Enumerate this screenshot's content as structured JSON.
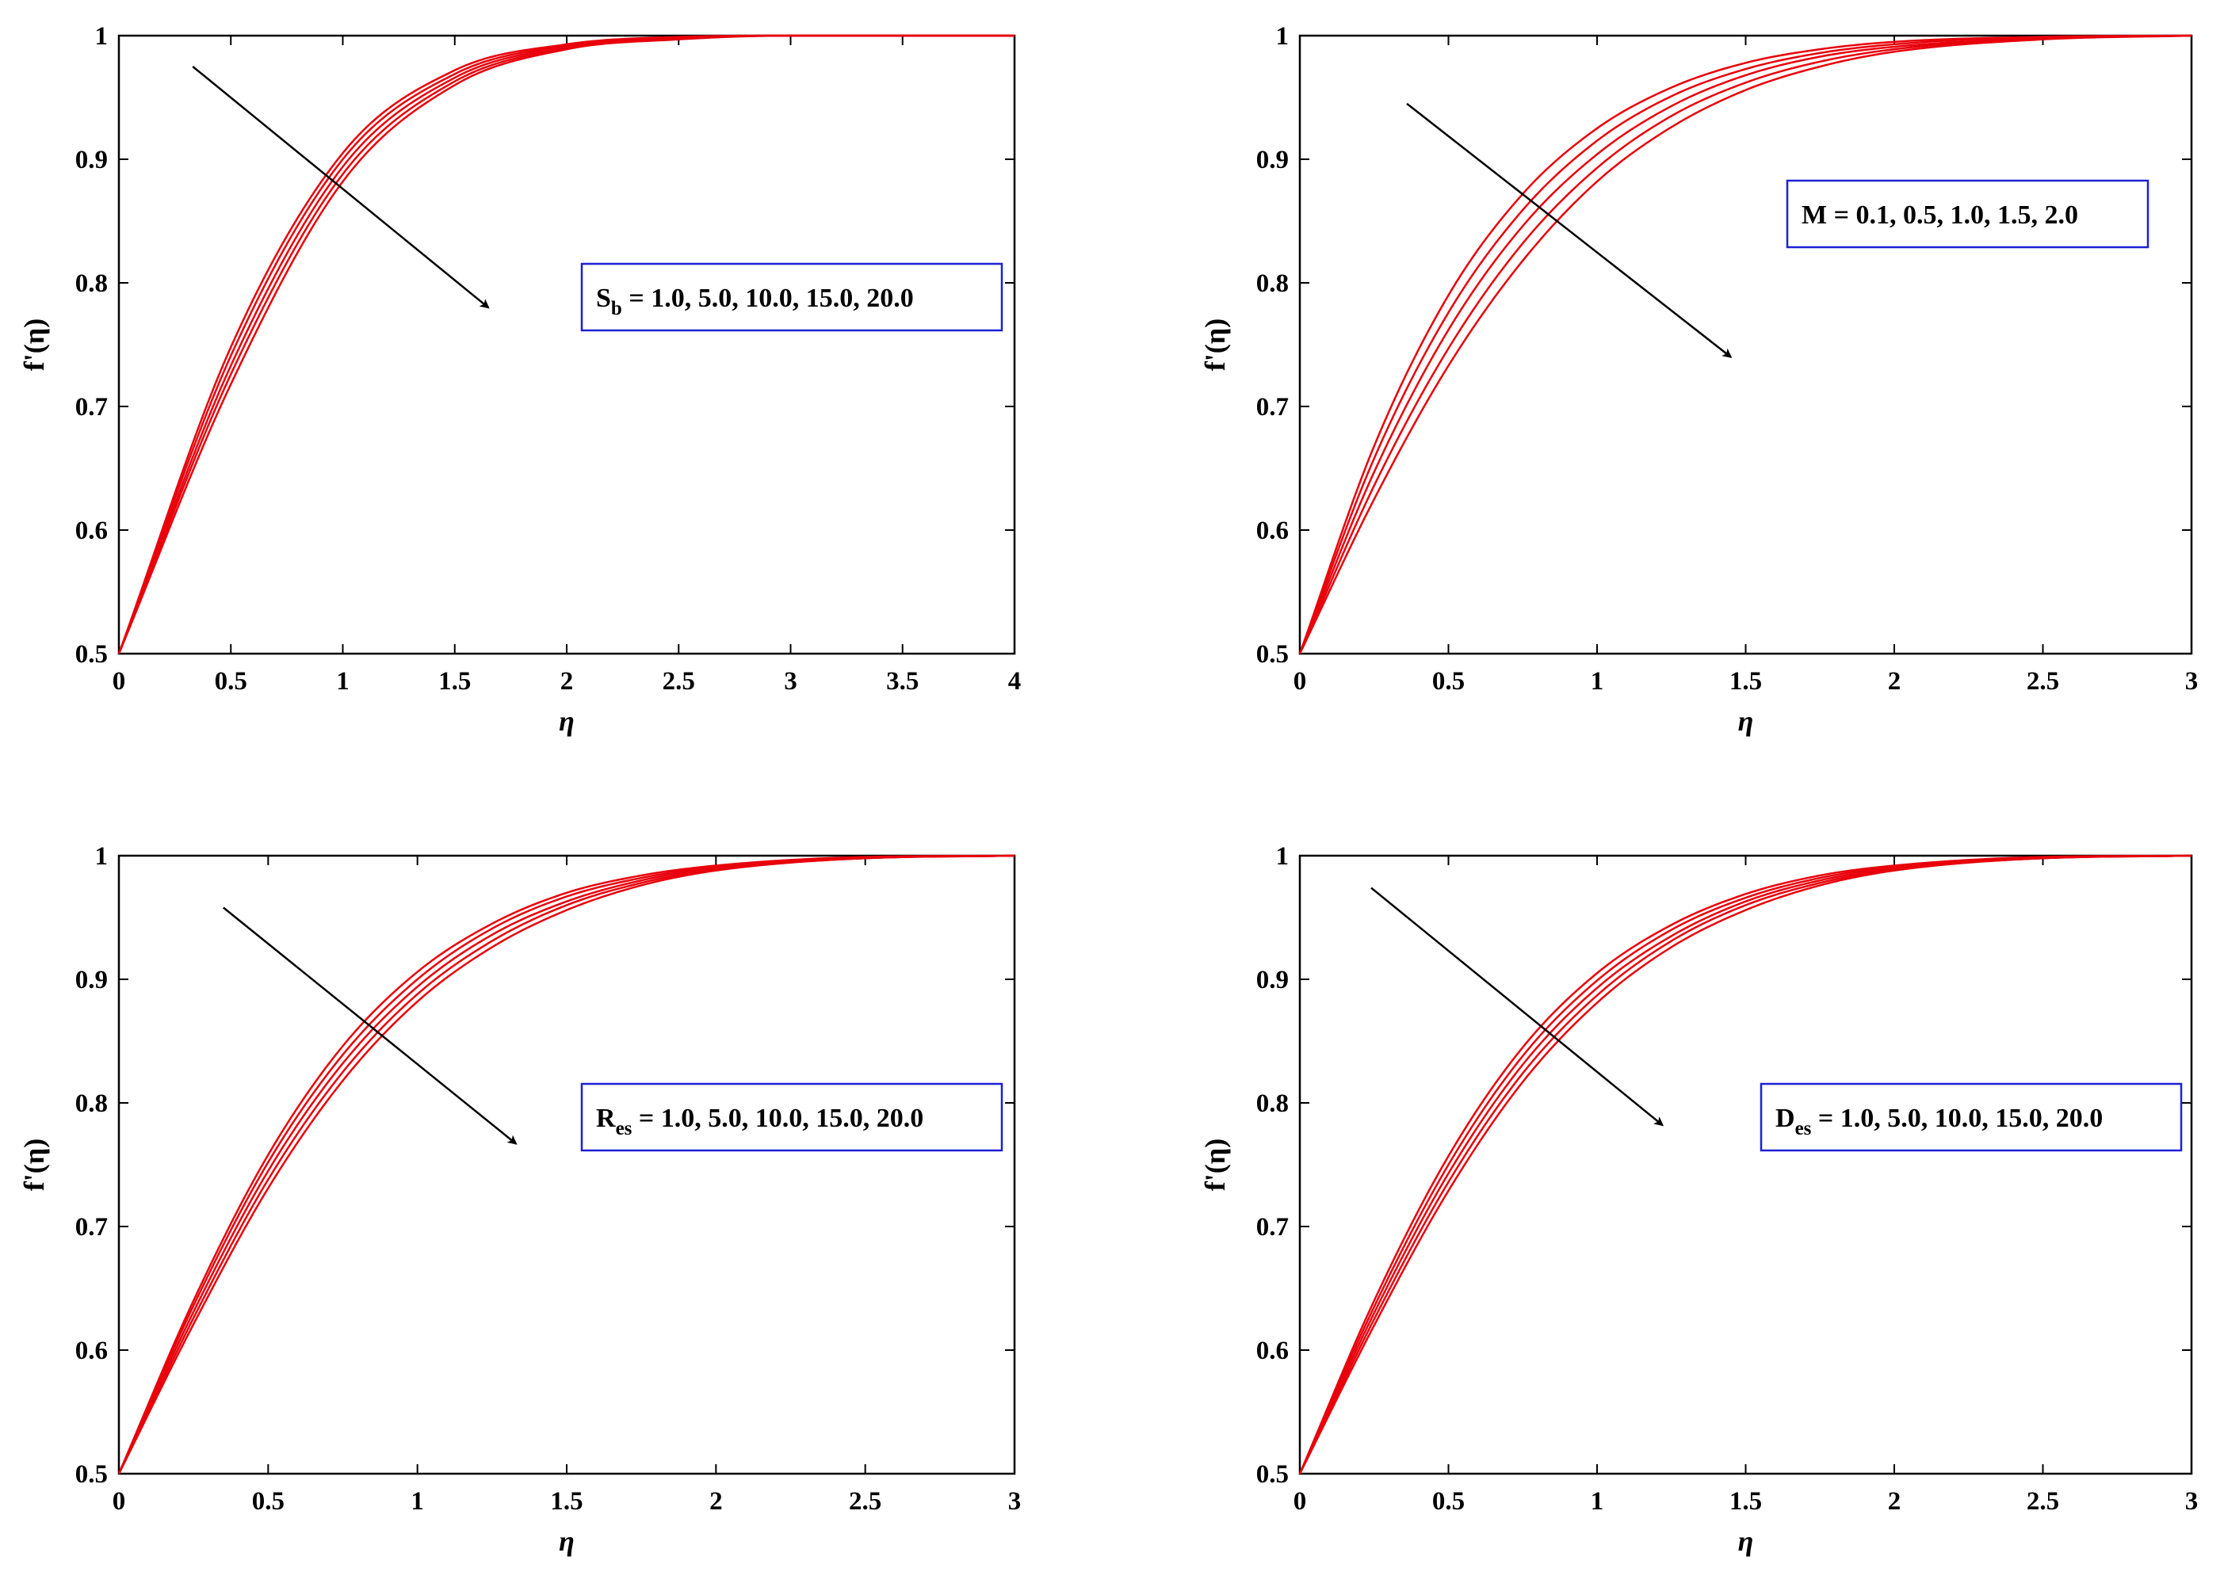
{
  "chart_data": [
    {
      "type": "line",
      "xlabel": "η",
      "ylabel": "f'(η)",
      "xlim": [
        0,
        4
      ],
      "ylim": [
        0.5,
        1
      ],
      "xticks": [
        "0",
        "0.5",
        "1",
        "1.5",
        "2",
        "2.5",
        "3",
        "3.5",
        "4"
      ],
      "yticks": [
        "0.5",
        "0.6",
        "0.7",
        "0.8",
        "0.9",
        "1"
      ],
      "grid": false,
      "legend": {
        "symbol": "S",
        "subscript": "b",
        "text": " = 1.0, 5.0, 10.0, 15.0, 20.0",
        "placement": "center-right"
      },
      "series_color": "#e8000b",
      "series": [
        {
          "x": [
            0,
            0.5,
            1,
            1.5,
            2,
            2.5,
            3,
            3.5,
            4
          ],
          "values": [
            0.5,
            0.748,
            0.905,
            0.972,
            0.993,
            0.999,
            1.0,
            1.0,
            1.0
          ]
        },
        {
          "x": [
            0,
            0.5,
            1,
            1.5,
            2,
            2.5,
            3,
            3.5,
            4
          ],
          "values": [
            0.5,
            0.741,
            0.9,
            0.969,
            0.992,
            0.998,
            1.0,
            1.0,
            1.0
          ]
        },
        {
          "x": [
            0,
            0.5,
            1,
            1.5,
            2,
            2.5,
            3,
            3.5,
            4
          ],
          "values": [
            0.5,
            0.733,
            0.894,
            0.966,
            0.991,
            0.998,
            1.0,
            1.0,
            1.0
          ]
        },
        {
          "x": [
            0,
            0.5,
            1,
            1.5,
            2,
            2.5,
            3,
            3.5,
            4
          ],
          "values": [
            0.5,
            0.726,
            0.888,
            0.963,
            0.99,
            0.998,
            1.0,
            1.0,
            1.0
          ]
        },
        {
          "x": [
            0,
            0.5,
            1,
            1.5,
            2,
            2.5,
            3,
            3.5,
            4
          ],
          "values": [
            0.5,
            0.718,
            0.882,
            0.96,
            0.989,
            0.997,
            1.0,
            1.0,
            1.0
          ]
        }
      ],
      "arrow": {
        "from": [
          0.33,
          0.975
        ],
        "to": [
          1.65,
          0.78
        ]
      }
    },
    {
      "type": "line",
      "xlabel": "η",
      "ylabel": "f'(η)",
      "xlim": [
        0,
        3
      ],
      "ylim": [
        0.5,
        1
      ],
      "xticks": [
        "0",
        "0.5",
        "1",
        "1.5",
        "2",
        "2.5",
        "3"
      ],
      "yticks": [
        "0.5",
        "0.6",
        "0.7",
        "0.8",
        "0.9",
        "1"
      ],
      "grid": false,
      "legend": {
        "symbol": "",
        "subscript": "",
        "text": "M = 0.1, 0.5, 1.0, 1.5, 2.0",
        "placement": "top-right"
      },
      "series_color": "#e8000b",
      "series": [
        {
          "x": [
            0,
            0.25,
            0.5,
            0.75,
            1,
            1.25,
            1.5,
            1.75,
            2,
            2.5,
            3
          ],
          "values": [
            0.5,
            0.668,
            0.79,
            0.872,
            0.925,
            0.958,
            0.978,
            0.989,
            0.995,
            0.999,
            1.0
          ]
        },
        {
          "x": [
            0,
            0.25,
            0.5,
            0.75,
            1,
            1.25,
            1.5,
            1.75,
            2,
            2.5,
            3
          ],
          "values": [
            0.5,
            0.658,
            0.776,
            0.859,
            0.915,
            0.951,
            0.973,
            0.986,
            0.993,
            0.999,
            1.0
          ]
        },
        {
          "x": [
            0,
            0.25,
            0.5,
            0.75,
            1,
            1.25,
            1.5,
            1.75,
            2,
            2.5,
            3
          ],
          "values": [
            0.5,
            0.647,
            0.762,
            0.846,
            0.904,
            0.943,
            0.968,
            0.983,
            0.991,
            0.998,
            1.0
          ]
        },
        {
          "x": [
            0,
            0.25,
            0.5,
            0.75,
            1,
            1.25,
            1.5,
            1.75,
            2,
            2.5,
            3
          ],
          "values": [
            0.5,
            0.636,
            0.747,
            0.832,
            0.893,
            0.935,
            0.962,
            0.979,
            0.989,
            0.998,
            1.0
          ]
        },
        {
          "x": [
            0,
            0.25,
            0.5,
            0.75,
            1,
            1.25,
            1.5,
            1.75,
            2,
            2.5,
            3
          ],
          "values": [
            0.5,
            0.625,
            0.733,
            0.818,
            0.882,
            0.926,
            0.956,
            0.975,
            0.987,
            0.997,
            1.0
          ]
        }
      ],
      "arrow": {
        "from": [
          0.36,
          0.945
        ],
        "to": [
          1.45,
          0.74
        ]
      }
    },
    {
      "type": "line",
      "xlabel": "η",
      "ylabel": "f'(η)",
      "xlim": [
        0,
        3
      ],
      "ylim": [
        0.5,
        1
      ],
      "xticks": [
        "0",
        "0.5",
        "1",
        "1.5",
        "2",
        "2.5",
        "3"
      ],
      "yticks": [
        "0.5",
        "0.6",
        "0.7",
        "0.8",
        "0.9",
        "1"
      ],
      "grid": false,
      "legend": {
        "symbol": "R",
        "subscript": "es",
        "text": " = 1.0, 5.0, 10.0, 15.0, 20.0",
        "placement": "center-right"
      },
      "series_color": "#e8000b",
      "series": [
        {
          "x": [
            0,
            0.25,
            0.5,
            0.75,
            1,
            1.25,
            1.5,
            1.75,
            2,
            2.5,
            3
          ],
          "values": [
            0.5,
            0.64,
            0.758,
            0.846,
            0.906,
            0.945,
            0.97,
            0.984,
            0.992,
            0.999,
            1.0
          ]
        },
        {
          "x": [
            0,
            0.25,
            0.5,
            0.75,
            1,
            1.25,
            1.5,
            1.75,
            2,
            2.5,
            3
          ],
          "values": [
            0.5,
            0.636,
            0.752,
            0.839,
            0.9,
            0.941,
            0.967,
            0.982,
            0.991,
            0.998,
            1.0
          ]
        },
        {
          "x": [
            0,
            0.25,
            0.5,
            0.75,
            1,
            1.25,
            1.5,
            1.75,
            2,
            2.5,
            3
          ],
          "values": [
            0.5,
            0.631,
            0.745,
            0.832,
            0.894,
            0.936,
            0.963,
            0.98,
            0.99,
            0.998,
            1.0
          ]
        },
        {
          "x": [
            0,
            0.25,
            0.5,
            0.75,
            1,
            1.25,
            1.5,
            1.75,
            2,
            2.5,
            3
          ],
          "values": [
            0.5,
            0.626,
            0.738,
            0.825,
            0.888,
            0.931,
            0.96,
            0.978,
            0.989,
            0.998,
            1.0
          ]
        },
        {
          "x": [
            0,
            0.25,
            0.5,
            0.75,
            1,
            1.25,
            1.5,
            1.75,
            2,
            2.5,
            3
          ],
          "values": [
            0.5,
            0.621,
            0.731,
            0.818,
            0.882,
            0.926,
            0.956,
            0.976,
            0.988,
            0.998,
            1.0
          ]
        }
      ],
      "arrow": {
        "from": [
          0.35,
          0.958
        ],
        "to": [
          1.33,
          0.767
        ]
      }
    },
    {
      "type": "line",
      "xlabel": "η",
      "ylabel": "f'(η)",
      "xlim": [
        0,
        3
      ],
      "ylim": [
        0.5,
        1
      ],
      "xticks": [
        "0",
        "0.5",
        "1",
        "1.5",
        "2",
        "2.5",
        "3"
      ],
      "yticks": [
        "0.5",
        "0.6",
        "0.7",
        "0.8",
        "0.9",
        "1"
      ],
      "grid": false,
      "legend": {
        "symbol": "D",
        "subscript": "es",
        "text": " = 1.0, 5.0, 10.0, 15.0, 20.0",
        "placement": "center-right"
      },
      "series_color": "#e8000b",
      "series": [
        {
          "x": [
            0,
            0.25,
            0.5,
            0.75,
            1,
            1.25,
            1.5,
            1.75,
            2,
            2.5,
            3
          ],
          "values": [
            0.5,
            0.64,
            0.757,
            0.845,
            0.905,
            0.944,
            0.969,
            0.984,
            0.992,
            0.999,
            1.0
          ]
        },
        {
          "x": [
            0,
            0.25,
            0.5,
            0.75,
            1,
            1.25,
            1.5,
            1.75,
            2,
            2.5,
            3
          ],
          "values": [
            0.5,
            0.635,
            0.75,
            0.838,
            0.899,
            0.94,
            0.966,
            0.982,
            0.991,
            0.998,
            1.0
          ]
        },
        {
          "x": [
            0,
            0.25,
            0.5,
            0.75,
            1,
            1.25,
            1.5,
            1.75,
            2,
            2.5,
            3
          ],
          "values": [
            0.5,
            0.63,
            0.743,
            0.831,
            0.893,
            0.935,
            0.963,
            0.98,
            0.99,
            0.998,
            1.0
          ]
        },
        {
          "x": [
            0,
            0.25,
            0.5,
            0.75,
            1,
            1.25,
            1.5,
            1.75,
            2,
            2.5,
            3
          ],
          "values": [
            0.5,
            0.625,
            0.736,
            0.824,
            0.887,
            0.931,
            0.96,
            0.978,
            0.989,
            0.998,
            1.0
          ]
        },
        {
          "x": [
            0,
            0.25,
            0.5,
            0.75,
            1,
            1.25,
            1.5,
            1.75,
            2,
            2.5,
            3
          ],
          "values": [
            0.5,
            0.62,
            0.729,
            0.817,
            0.881,
            0.926,
            0.956,
            0.976,
            0.988,
            0.998,
            1.0
          ]
        }
      ],
      "arrow": {
        "from": [
          0.24,
          0.974
        ],
        "to": [
          1.22,
          0.782
        ]
      }
    }
  ]
}
